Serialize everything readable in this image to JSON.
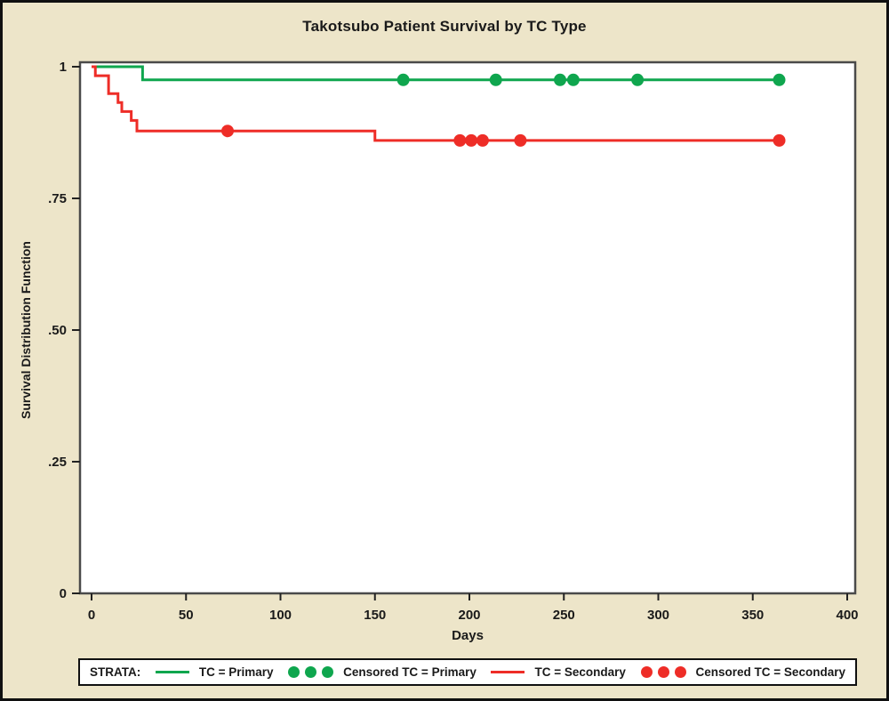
{
  "chart_data": {
    "type": "line",
    "subtype": "kaplan-meier-step-survival",
    "title": "Takotsubo Patient Survival by TC Type",
    "xlabel": "Days",
    "ylabel": "Survival Distribution Function",
    "xlim": [
      0,
      400
    ],
    "ylim": [
      0,
      1
    ],
    "grid": false,
    "xticks": [
      0,
      50,
      100,
      150,
      200,
      250,
      300,
      350,
      400
    ],
    "yticks": [
      {
        "value": 1,
        "label": "1"
      },
      {
        "value": 0.75,
        "label": ".75"
      },
      {
        "value": 0.5,
        "label": ".50"
      },
      {
        "value": 0.25,
        "label": ".25"
      },
      {
        "value": 0,
        "label": "0"
      }
    ],
    "series": [
      {
        "name": "TC = Primary",
        "color": "#0fa64e",
        "steps": [
          [
            0,
            1.0
          ],
          [
            27,
            0.975
          ],
          [
            364,
            0.975
          ]
        ],
        "censored": [
          [
            165,
            0.975
          ],
          [
            214,
            0.975
          ],
          [
            248,
            0.975
          ],
          [
            255,
            0.975
          ],
          [
            289,
            0.975
          ],
          [
            364,
            0.975
          ]
        ]
      },
      {
        "name": "TC = Secondary",
        "color": "#ee2d27",
        "steps": [
          [
            0,
            1.0
          ],
          [
            2,
            0.983
          ],
          [
            9,
            0.949
          ],
          [
            14,
            0.932
          ],
          [
            16,
            0.915
          ],
          [
            21,
            0.898
          ],
          [
            24,
            0.878
          ],
          [
            150,
            0.86
          ],
          [
            364,
            0.86
          ]
        ],
        "censored": [
          [
            72,
            0.878
          ],
          [
            195,
            0.86
          ],
          [
            201,
            0.86
          ],
          [
            207,
            0.86
          ],
          [
            227,
            0.86
          ],
          [
            364,
            0.86
          ]
        ]
      }
    ]
  },
  "legend": {
    "strata_label": "STRATA:",
    "items": [
      {
        "marker": "line",
        "series": 0,
        "label": "TC = Primary"
      },
      {
        "marker": "dots",
        "series": 0,
        "label": "Censored TC = Primary"
      },
      {
        "marker": "line",
        "series": 1,
        "label": "TC = Secondary"
      },
      {
        "marker": "dots",
        "series": 1,
        "label": "Censored TC = Secondary"
      }
    ]
  },
  "colors": {
    "background": "#ede5c9",
    "plot_background": "#ffffff",
    "frame": "#4a4a4a",
    "text": "#1a1a1a",
    "primary_green": "#0fa64e",
    "secondary_red": "#ee2d27"
  }
}
